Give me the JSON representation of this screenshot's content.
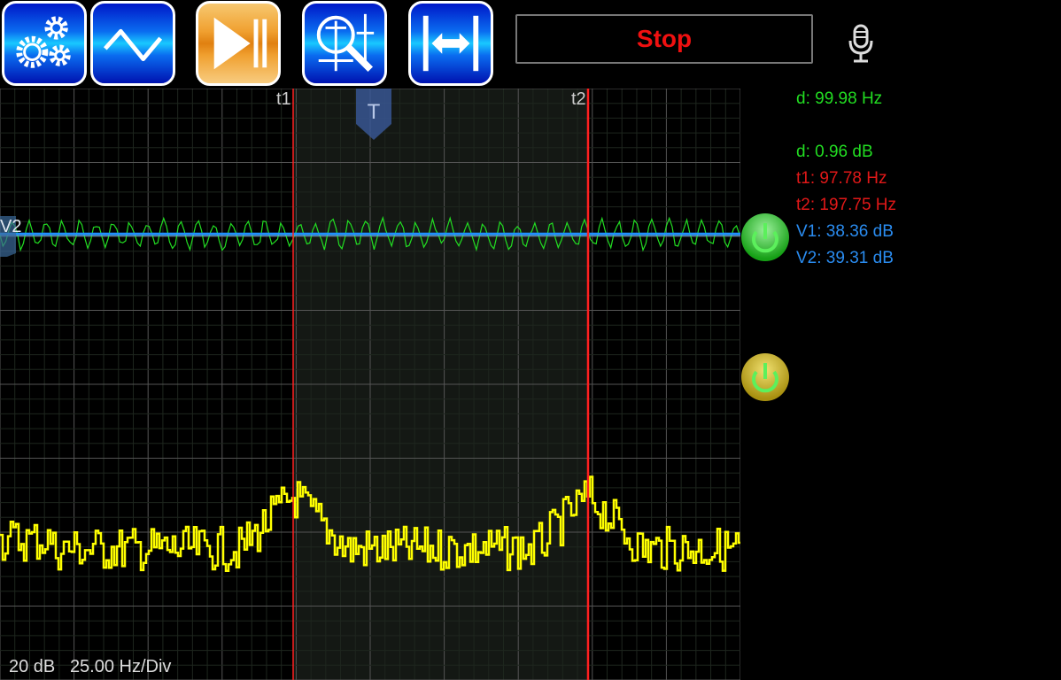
{
  "toolbar": {
    "buttons": [
      {
        "icon": "gears-icon",
        "label": "Settings"
      },
      {
        "icon": "sine-wave-icon",
        "label": "Waveform"
      },
      {
        "icon": "play-pause-icon",
        "label": "Run/Hold"
      },
      {
        "icon": "cursor-zoom-icon",
        "label": "Cursor measure"
      },
      {
        "icon": "fit-width-icon",
        "label": "Auto scale"
      }
    ],
    "stop_label": "Stop",
    "mic_icon": "microphone-icon"
  },
  "plot": {
    "cursor_t1_label": "t1",
    "cursor_t2_label": "t2",
    "trigger_label": "T",
    "v_marker_label": "V2",
    "scale_db": "20 dB",
    "scale_hz": "25.00 Hz/Div",
    "colors": {
      "trace": "#ffff00",
      "cursor": "#ff2020",
      "v_cursor": "#1e90ff",
      "noise": "#22dd22",
      "grid": "#444"
    }
  },
  "readouts": {
    "d_hz": "d: 99.98 Hz",
    "d_db": "d: 0.96 dB",
    "t1": "t1: 97.78 Hz",
    "t2": "t2: 197.75 Hz",
    "v1": "V1: 38.36 dB",
    "v2": "V2: 39.31 dB"
  },
  "channels": [
    {
      "name": "channel-1-power",
      "color": "#22cc22"
    },
    {
      "name": "channel-2-power",
      "color": "#d8c020"
    }
  ]
}
